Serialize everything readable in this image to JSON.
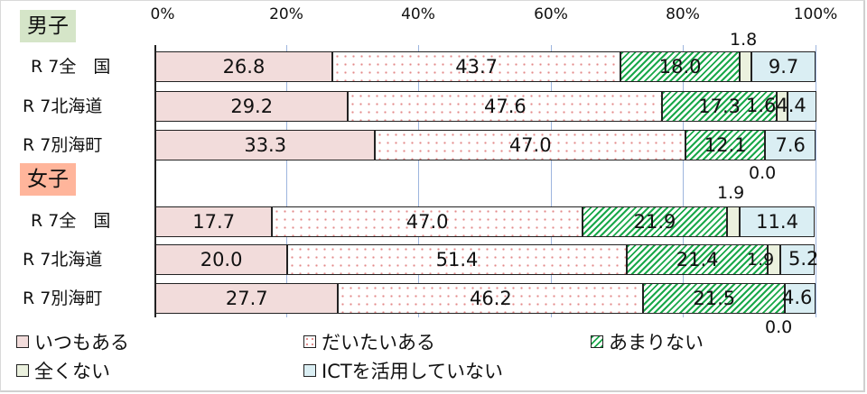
{
  "chart_data": {
    "type": "bar",
    "orientation": "horizontal",
    "stacked": "percent",
    "title": "",
    "xlabel": "",
    "ylabel": "",
    "xlim": [
      0,
      100
    ],
    "x_ticks": [
      "0%",
      "20%",
      "40%",
      "60%",
      "80%",
      "100%"
    ],
    "grid": true,
    "legend_position": "bottom",
    "groups": [
      {
        "name": "男子",
        "color": "#d5e5c8",
        "categories": [
          "R 7全　国",
          "R 7北海道",
          "R 7別海町"
        ]
      },
      {
        "name": "女子",
        "color": "#ffb59b",
        "categories": [
          "R 7全　国",
          "R 7北海道",
          "R 7別海町"
        ]
      }
    ],
    "categories": [
      "男子 R 7全　国",
      "男子 R 7北海道",
      "男子 R 7別海町",
      "女子 R 7全　国",
      "女子 R 7北海道",
      "女子 R 7別海町"
    ],
    "series": [
      {
        "name": "いつもある",
        "color": "#f2dcdb",
        "values": [
          26.8,
          29.2,
          33.3,
          17.7,
          20.0,
          27.7
        ]
      },
      {
        "name": "だいたいある",
        "color": "#ffffff",
        "pattern": "red-dots",
        "values": [
          43.7,
          47.6,
          47.0,
          47.0,
          51.4,
          46.2
        ]
      },
      {
        "name": "あまりない",
        "color": "#1aa84a",
        "pattern": "green-diagonal-stripes",
        "values": [
          18.0,
          17.3,
          12.1,
          21.9,
          21.4,
          21.5
        ]
      },
      {
        "name": "全くない",
        "color": "#ebf1de",
        "values": [
          1.8,
          1.6,
          0.0,
          1.9,
          1.9,
          0.0
        ]
      },
      {
        "name": "ICTを活用していない",
        "color": "#daeef3",
        "values": [
          9.7,
          4.4,
          7.6,
          11.4,
          5.2,
          4.6
        ]
      }
    ]
  },
  "groups": {
    "boys": {
      "label": "男子"
    },
    "girls": {
      "label": "女子"
    }
  },
  "rows": [
    {
      "label": "R 7全　国"
    },
    {
      "label": "R 7北海道"
    },
    {
      "label": "R 7別海町"
    },
    {
      "label": "R 7全　国"
    },
    {
      "label": "R 7北海道"
    },
    {
      "label": "R 7別海町"
    }
  ],
  "ticks": [
    "0%",
    "20%",
    "40%",
    "60%",
    "80%",
    "100%"
  ],
  "bars": [
    {
      "segs": [
        [
          "26.8",
          26.8
        ],
        [
          "43.7",
          43.7
        ],
        [
          "18.0",
          18.0
        ],
        [
          "",
          1.8
        ],
        [
          "9.7",
          9.7
        ]
      ]
    },
    {
      "segs": [
        [
          "29.2",
          29.2
        ],
        [
          "47.6",
          47.6
        ],
        [
          "17.3",
          17.3
        ],
        [
          "",
          1.6
        ],
        [
          "",
          4.4
        ]
      ]
    },
    {
      "segs": [
        [
          "33.3",
          33.3
        ],
        [
          "47.0",
          47.0
        ],
        [
          "12.1",
          12.1
        ],
        [
          "",
          0.0
        ],
        [
          "7.6",
          7.6
        ]
      ]
    },
    {
      "segs": [
        [
          "17.7",
          17.7
        ],
        [
          "47.0",
          47.0
        ],
        [
          "21.9",
          21.9
        ],
        [
          "",
          1.9
        ],
        [
          "11.4",
          11.4
        ]
      ]
    },
    {
      "segs": [
        [
          "20.0",
          20.0
        ],
        [
          "51.4",
          51.4
        ],
        [
          "21.4",
          21.4
        ],
        [
          "",
          1.9
        ],
        [
          "",
          5.2
        ]
      ]
    },
    {
      "segs": [
        [
          "27.7",
          27.7
        ],
        [
          "46.2",
          46.2
        ],
        [
          "21.5",
          21.5
        ],
        [
          "",
          0.0
        ],
        [
          "",
          4.6
        ]
      ]
    }
  ],
  "outside_labels": {
    "r1_never": "1.8",
    "r2_never_noict": "1.64.4",
    "r3_never": "0.0",
    "r4_never": "1.9",
    "r5_never": "1.9",
    "r5_noict": "5.2",
    "r6_noict": "4.6",
    "r6_never": "0.0"
  },
  "legend": [
    {
      "label": "いつもある"
    },
    {
      "label": "だいたいある"
    },
    {
      "label": "あまりない"
    },
    {
      "label": "全くない"
    },
    {
      "label": "ICTを活用していない"
    }
  ]
}
